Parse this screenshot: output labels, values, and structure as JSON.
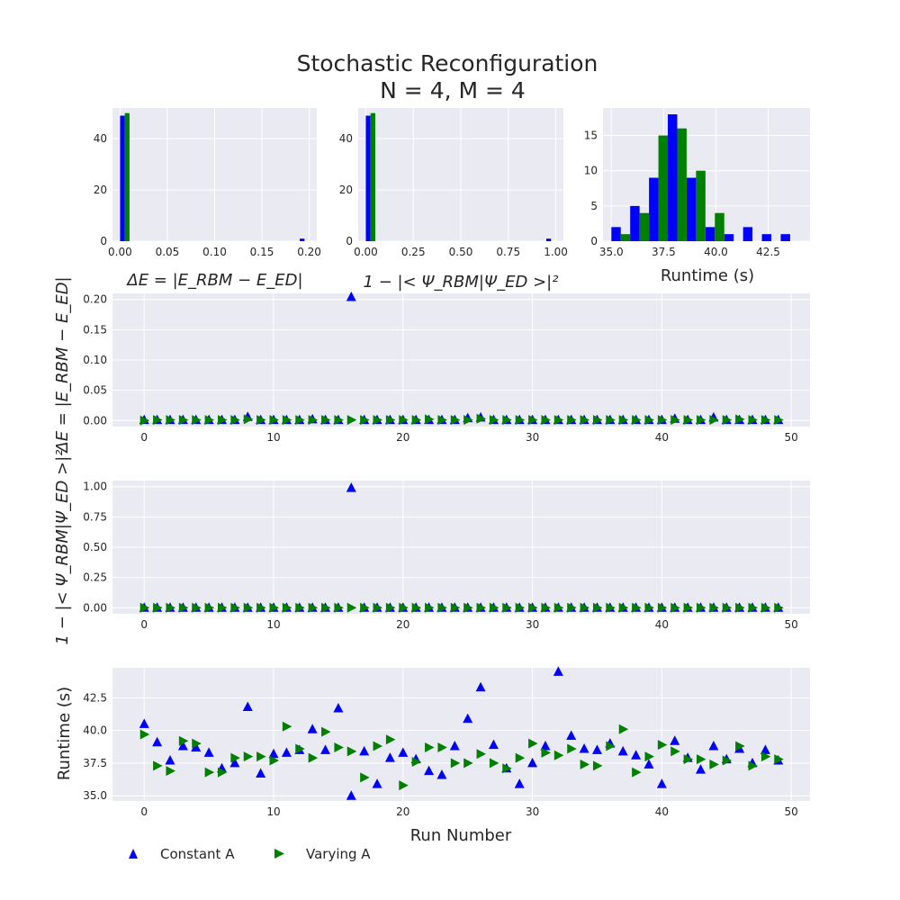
{
  "title": "Stochastic Reconfiguration",
  "subtitle": "N = 4, M = 4",
  "colors": {
    "constant": "#0000ff",
    "varying": "#008000",
    "panel_bg": "#eaeaf2",
    "grid": "#ffffff"
  },
  "legend": {
    "placement": "bottom-left",
    "entries": [
      "Constant A",
      "Varying A"
    ]
  },
  "chart_data": [
    {
      "id": "hist_energy",
      "type": "bar",
      "xlabel": "ΔE = |E_RBM − E_ED|",
      "ylabel": "",
      "xlim": [
        -0.008,
        0.208
      ],
      "ylim": [
        0,
        52
      ],
      "xticks": [
        0.0,
        0.05,
        0.1,
        0.15,
        0.2
      ],
      "xtick_labels": [
        "0.00",
        "0.05",
        "0.10",
        "0.15",
        "0.20"
      ],
      "yticks": [
        0,
        20,
        40
      ],
      "bin_width": 0.01,
      "series": [
        {
          "name": "Constant A",
          "bins": [
            [
              0.0,
              49
            ],
            [
              0.19,
              1
            ]
          ]
        },
        {
          "name": "Varying A",
          "bins": [
            [
              0.0,
              50
            ]
          ]
        }
      ]
    },
    {
      "id": "hist_fidelity",
      "type": "bar",
      "xlabel": "1 − |< Ψ_RBM|Ψ_ED >|²",
      "ylabel": "",
      "xlim": [
        -0.04,
        1.04
      ],
      "ylim": [
        0,
        52
      ],
      "xticks": [
        0.0,
        0.25,
        0.5,
        0.75,
        1.0
      ],
      "xtick_labels": [
        "0.00",
        "0.25",
        "0.50",
        "0.75",
        "1.00"
      ],
      "yticks": [
        0,
        20,
        40
      ],
      "bin_width": 0.05,
      "series": [
        {
          "name": "Constant A",
          "bins": [
            [
              0.0,
              49
            ],
            [
              0.95,
              1
            ]
          ]
        },
        {
          "name": "Varying A",
          "bins": [
            [
              0.0,
              50
            ]
          ]
        }
      ]
    },
    {
      "id": "hist_runtime",
      "type": "bar",
      "xlabel": "Runtime (s)",
      "ylabel": "",
      "xlim": [
        34.6,
        44.5
      ],
      "ylim": [
        0,
        18.9
      ],
      "xticks": [
        35.0,
        37.5,
        40.0,
        42.5
      ],
      "xtick_labels": [
        "35.0",
        "37.5",
        "40.0",
        "42.5"
      ],
      "yticks": [
        0,
        5,
        10,
        15
      ],
      "bin_width": 0.9,
      "series": [
        {
          "name": "Constant A",
          "bins": [
            [
              35.0,
              2
            ],
            [
              35.9,
              5
            ],
            [
              36.8,
              9
            ],
            [
              37.7,
              18
            ],
            [
              38.6,
              9
            ],
            [
              39.5,
              2
            ],
            [
              40.4,
              1
            ],
            [
              41.3,
              2
            ],
            [
              42.2,
              1
            ],
            [
              43.1,
              1
            ]
          ]
        },
        {
          "name": "Varying A",
          "bins": [
            [
              35.0,
              1
            ],
            [
              35.9,
              4
            ],
            [
              36.8,
              15
            ],
            [
              37.7,
              16
            ],
            [
              38.6,
              10
            ],
            [
              39.5,
              4
            ]
          ]
        }
      ]
    },
    {
      "id": "scatter_energy",
      "type": "scatter",
      "xlabel": "",
      "ylabel": "ΔE = |E_RBM − E_ED|",
      "xlim": [
        -2.45,
        51.45
      ],
      "ylim": [
        -0.01,
        0.21
      ],
      "xticks": [
        0,
        10,
        20,
        30,
        40,
        50
      ],
      "xtick_labels": [
        "0",
        "10",
        "20",
        "30",
        "40",
        "50"
      ],
      "yticks": [
        0.0,
        0.05,
        0.1,
        0.15,
        0.2
      ],
      "ytick_labels": [
        "0.00",
        "0.05",
        "0.10",
        "0.15",
        "0.20"
      ],
      "series": [
        {
          "name": "Constant A",
          "marker": "triangle-up",
          "y": [
            0.001,
            0.001,
            0.001,
            0.001,
            0.001,
            0.001,
            0.001,
            0.001,
            0.006,
            0.001,
            0.001,
            0.001,
            0.001,
            0.002,
            0.001,
            0.001,
            0.204,
            0.001,
            0.001,
            0.001,
            0.001,
            0.001,
            0.001,
            0.001,
            0.001,
            0.004,
            0.005,
            0.001,
            0.001,
            0.001,
            0.001,
            0.001,
            0.001,
            0.001,
            0.001,
            0.001,
            0.001,
            0.001,
            0.001,
            0.001,
            0.001,
            0.003,
            0.001,
            0.001,
            0.005,
            0.001,
            0.001,
            0.001,
            0.001,
            0.001
          ]
        },
        {
          "name": "Varying A",
          "marker": "triangle-right",
          "y": [
            0.0,
            0.001,
            0.001,
            0.001,
            0.001,
            0.001,
            0.001,
            0.001,
            0.002,
            0.001,
            0.001,
            0.001,
            0.001,
            0.001,
            0.001,
            0.001,
            0.001,
            0.001,
            0.001,
            0.001,
            0.001,
            0.001,
            0.002,
            0.001,
            0.001,
            0.001,
            0.003,
            0.001,
            0.001,
            0.001,
            0.001,
            0.001,
            0.001,
            0.001,
            0.001,
            0.001,
            0.001,
            0.001,
            0.001,
            0.001,
            0.001,
            0.001,
            0.001,
            0.001,
            0.001,
            0.001,
            0.002,
            0.001,
            0.001,
            0.001
          ]
        }
      ]
    },
    {
      "id": "scatter_fidelity",
      "type": "scatter",
      "xlabel": "",
      "ylabel": "1 − |< Ψ_RBM|Ψ_ED >|²",
      "xlim": [
        -2.45,
        51.45
      ],
      "ylim": [
        -0.05,
        1.05
      ],
      "xticks": [
        0,
        10,
        20,
        30,
        40,
        50
      ],
      "xtick_labels": [
        "0",
        "10",
        "20",
        "30",
        "40",
        "50"
      ],
      "yticks": [
        0.0,
        0.25,
        0.5,
        0.75,
        1.0
      ],
      "ytick_labels": [
        "0.00",
        "0.25",
        "0.50",
        "0.75",
        "1.00"
      ],
      "series": [
        {
          "name": "Constant A",
          "marker": "triangle-up",
          "y": [
            0,
            0,
            0,
            0,
            0,
            0,
            0,
            0,
            0,
            0,
            0,
            0,
            0,
            0,
            0,
            0,
            0.99,
            0,
            0,
            0,
            0,
            0,
            0,
            0,
            0,
            0,
            0,
            0,
            0,
            0,
            0,
            0,
            0,
            0,
            0,
            0,
            0,
            0,
            0,
            0,
            0,
            0,
            0,
            0,
            0,
            0,
            0,
            0,
            0,
            0
          ]
        },
        {
          "name": "Varying A",
          "marker": "triangle-right",
          "y": [
            0,
            0,
            0,
            0,
            0,
            0,
            0,
            0,
            0,
            0,
            0,
            0,
            0,
            0,
            0,
            0,
            0,
            0,
            0,
            0,
            0,
            0,
            0,
            0,
            0,
            0,
            0,
            0,
            0,
            0,
            0,
            0,
            0,
            0,
            0,
            0,
            0,
            0,
            0,
            0,
            0,
            0,
            0,
            0,
            0,
            0,
            0,
            0,
            0,
            0
          ]
        }
      ]
    },
    {
      "id": "scatter_runtime",
      "type": "scatter",
      "xlabel": "Run Number",
      "ylabel": "Runtime (s)",
      "xlim": [
        -2.45,
        51.45
      ],
      "ylim": [
        34.6,
        44.8
      ],
      "xticks": [
        0,
        10,
        20,
        30,
        40,
        50
      ],
      "xtick_labels": [
        "0",
        "10",
        "20",
        "30",
        "40",
        "50"
      ],
      "yticks": [
        35.0,
        37.5,
        40.0,
        42.5
      ],
      "ytick_labels": [
        "35.0",
        "37.5",
        "40.0",
        "42.5"
      ],
      "series": [
        {
          "name": "Constant A",
          "marker": "triangle-up",
          "y": [
            40.5,
            39.1,
            37.7,
            38.8,
            38.7,
            38.3,
            37.1,
            37.5,
            41.8,
            36.7,
            38.2,
            38.3,
            38.5,
            40.1,
            38.5,
            41.7,
            35.0,
            38.4,
            35.9,
            37.9,
            38.3,
            37.8,
            36.9,
            36.6,
            38.8,
            40.9,
            43.3,
            38.9,
            37.1,
            35.9,
            37.5,
            38.8,
            44.5,
            39.6,
            38.6,
            38.5,
            39.0,
            38.4,
            38.1,
            37.4,
            35.9,
            39.2,
            37.9,
            37.0,
            38.8,
            37.8,
            38.6,
            37.5,
            38.5,
            37.7
          ]
        },
        {
          "name": "Varying A",
          "marker": "triangle-right",
          "y": [
            39.7,
            37.3,
            36.9,
            39.2,
            39.0,
            36.8,
            36.8,
            37.9,
            38.0,
            38.0,
            37.7,
            40.3,
            38.6,
            37.9,
            39.9,
            38.7,
            38.4,
            36.4,
            38.8,
            39.3,
            35.8,
            37.6,
            38.7,
            38.7,
            37.5,
            37.5,
            38.2,
            37.5,
            37.1,
            37.9,
            39.0,
            38.3,
            38.1,
            38.6,
            37.4,
            37.3,
            38.8,
            40.1,
            36.8,
            38.0,
            38.9,
            38.4,
            37.8,
            37.8,
            37.4,
            37.7,
            38.8,
            37.3,
            38.0,
            37.8
          ]
        }
      ]
    }
  ]
}
